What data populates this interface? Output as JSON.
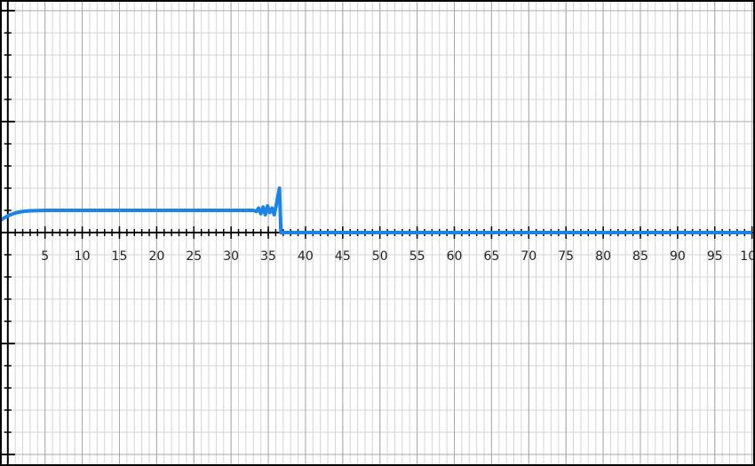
{
  "chart_data": {
    "type": "line",
    "x": [
      -1,
      -0.5,
      0,
      0.5,
      1,
      1.5,
      2,
      3,
      4,
      5,
      33,
      33.4,
      33.7,
      34,
      34.3,
      34.6,
      34.9,
      35.2,
      35.5,
      35.8,
      36.1,
      36.5,
      36.7,
      37,
      100
    ],
    "series": [
      {
        "color": "#1a85e6",
        "values": [
          0.55,
          0.66,
          0.75,
          0.82,
          0.88,
          0.92,
          0.95,
          0.98,
          0.99,
          1,
          1,
          0.95,
          1.1,
          0.85,
          1.15,
          0.8,
          1.2,
          0.9,
          1.1,
          0.8,
          1.3,
          2,
          0,
          0,
          0
        ]
      }
    ],
    "xlim": [
      -1.05,
      100.4
    ],
    "ylim": [
      -10.52,
      10.48
    ],
    "xticks": [
      5,
      10,
      15,
      20,
      25,
      30,
      35,
      40,
      45,
      50,
      55,
      60,
      65,
      70,
      75,
      80,
      85,
      90,
      95,
      100
    ],
    "yticks": [
      -10,
      -5,
      0,
      5,
      10
    ],
    "grid": true,
    "minor_step": 1
  }
}
